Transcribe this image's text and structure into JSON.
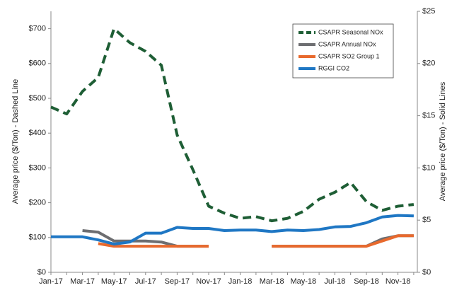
{
  "chart_data": {
    "type": "line",
    "y_label": "Average price ($/Ton) - Dashed Line",
    "y2_label": "Average price ($/Ton) - Solid Lines",
    "categories": [
      "Jan-17",
      null,
      "Mar-17",
      null,
      "May-17",
      null,
      "Jul-17",
      null,
      "Sep-17",
      null,
      "Nov-17",
      null,
      "Jan-18",
      null,
      "Mar-18",
      null,
      "May-18",
      null,
      "Jul-18",
      null,
      "Sep-18",
      null,
      "Nov-18",
      null
    ],
    "ylim": [
      0,
      750
    ],
    "yticks": [
      {
        "value": 0,
        "label": "$0"
      },
      {
        "value": 100,
        "label": "$100"
      },
      {
        "value": 200,
        "label": "$200"
      },
      {
        "value": 300,
        "label": "$300"
      },
      {
        "value": 400,
        "label": "$400"
      },
      {
        "value": 500,
        "label": "$500"
      },
      {
        "value": 600,
        "label": "$600"
      },
      {
        "value": 700,
        "label": "$700"
      }
    ],
    "y2lim": [
      0,
      25
    ],
    "y2ticks": [
      {
        "value": 0,
        "label": "$0"
      },
      {
        "value": 5,
        "label": "$5"
      },
      {
        "value": 10,
        "label": "$10"
      },
      {
        "value": 15,
        "label": "$15"
      },
      {
        "value": 20,
        "label": "$20"
      },
      {
        "value": 25,
        "label": "$25"
      }
    ],
    "legend": "upper right",
    "series": [
      {
        "name": "CSAPR Seasonal NOx",
        "color": "#1e5e35",
        "linestyle": "dashed",
        "values": [
          475,
          455,
          520,
          560,
          700,
          660,
          635,
          595,
          395,
          295,
          190,
          170,
          155,
          160,
          148,
          155,
          175,
          210,
          230,
          258,
          203,
          178,
          190,
          195
        ]
      },
      {
        "name": "CSAPR Annual NOx",
        "color": "#6d6e71",
        "linestyle": "solid",
        "axis": "y2",
        "values": [
          null,
          null,
          4.0,
          3.85,
          3.0,
          3.0,
          3.0,
          2.9,
          2.5,
          2.5,
          2.5,
          null,
          null,
          null,
          2.5,
          2.5,
          2.5,
          2.5,
          2.5,
          2.5,
          2.5,
          3.2,
          3.5,
          3.5
        ]
      },
      {
        "name": "CSAPR SO2 Group 1",
        "color": "#e8692d",
        "linestyle": "solid",
        "axis": "y2",
        "values": [
          null,
          null,
          null,
          2.75,
          2.5,
          2.5,
          2.5,
          2.5,
          2.5,
          2.5,
          2.5,
          null,
          null,
          null,
          2.5,
          2.5,
          2.5,
          2.5,
          2.5,
          2.5,
          2.5,
          3.0,
          3.5,
          3.5
        ]
      },
      {
        "name": "RGGI CO2",
        "color": "#1f77c4",
        "linestyle": "solid",
        "axis": "y2",
        "values": [
          3.4,
          3.4,
          3.4,
          3.1,
          2.7,
          2.9,
          3.75,
          3.75,
          4.3,
          4.2,
          4.2,
          4.0,
          4.05,
          4.05,
          3.9,
          4.05,
          4.0,
          4.1,
          4.35,
          4.4,
          4.75,
          5.3,
          5.45,
          5.4
        ]
      }
    ]
  }
}
